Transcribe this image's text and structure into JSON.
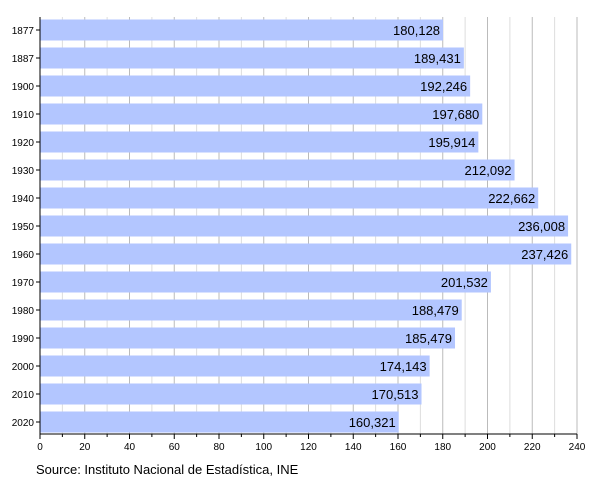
{
  "chart_data": {
    "type": "bar",
    "orientation": "horizontal",
    "categories": [
      "1877",
      "1887",
      "1900",
      "1910",
      "1920",
      "1930",
      "1940",
      "1950",
      "1960",
      "1970",
      "1980",
      "1990",
      "2000",
      "2010",
      "2020"
    ],
    "values": [
      180128,
      189431,
      192246,
      197680,
      195914,
      212092,
      222662,
      236008,
      237426,
      201532,
      188479,
      185479,
      174143,
      170513,
      160321
    ],
    "value_labels": [
      "180,128",
      "189,431",
      "192,246",
      "197,680",
      "195,914",
      "212,092",
      "222,662",
      "236,008",
      "237,426",
      "201,532",
      "188,479",
      "185,479",
      "174,143",
      "170,513",
      "160,321"
    ],
    "xlim": [
      0,
      240
    ],
    "x_unit_scale": 1000,
    "xticks": [
      "0",
      "20",
      "40",
      "60",
      "80",
      "100",
      "120",
      "140",
      "160",
      "180",
      "200",
      "220",
      "240"
    ],
    "grid": "vertical, minor every 10, major every 20",
    "bar_color": "#b3c6ff",
    "source": "Source: Instituto Nacional de Estadística, INE"
  }
}
